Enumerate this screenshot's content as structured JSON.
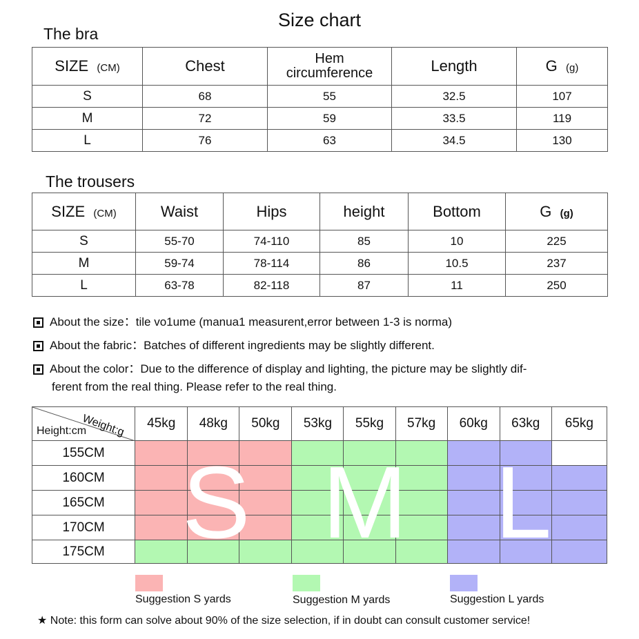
{
  "title": "Size chart",
  "bra": {
    "heading": "The bra",
    "headers": {
      "size": "SIZE",
      "size_unit": "(CM)",
      "chest": "Chest",
      "hem_1": "Hem",
      "hem_2": "circumference",
      "length": "Length",
      "g": "G",
      "g_unit": "(g)"
    },
    "rows": [
      [
        "S",
        "68",
        "55",
        "32.5",
        "107"
      ],
      [
        "M",
        "72",
        "59",
        "33.5",
        "119"
      ],
      [
        "L",
        "76",
        "63",
        "34.5",
        "130"
      ]
    ]
  },
  "trousers": {
    "heading": "The trousers",
    "headers": {
      "size": "SIZE",
      "size_unit": "(CM)",
      "waist": "Waist",
      "hips": "Hips",
      "height": "height",
      "bottom": "Bottom",
      "g": "G",
      "g_unit": "(g)"
    },
    "rows": [
      [
        "S",
        "55-70",
        "74-110",
        "85",
        "10",
        "225"
      ],
      [
        "M",
        "59-74",
        "78-114",
        "86",
        "10.5",
        "237"
      ],
      [
        "L",
        "63-78",
        "82-118",
        "87",
        "11",
        "250"
      ]
    ]
  },
  "notes": {
    "size": "About the size：tile vo1ume (manua1 measurent,error between 1-3 is norma)",
    "fabric": "About the fabric：Batches of different ingredients may be slightly different.",
    "color_1": "About the color：Due to the difference of display and lighting, the picture may be slightly dif-",
    "color_2": "ferent from the real thing. Please refer to the real thing."
  },
  "matrix": {
    "weight_label": "Weight:g",
    "height_label": "Height:cm",
    "weights": [
      "45kg",
      "48kg",
      "50kg",
      "53kg",
      "55kg",
      "57kg",
      "60kg",
      "63kg",
      "65kg"
    ],
    "heights": [
      "155CM",
      "160CM",
      "165CM",
      "170CM",
      "175CM"
    ],
    "grid": [
      [
        "S",
        "S",
        "S",
        "M",
        "M",
        "M",
        "L",
        "L",
        "-"
      ],
      [
        "S",
        "S",
        "S",
        "M",
        "M",
        "M",
        "L",
        "L",
        "L"
      ],
      [
        "S",
        "S",
        "S",
        "M",
        "M",
        "M",
        "L",
        "L",
        "L"
      ],
      [
        "S",
        "S",
        "S",
        "M",
        "M",
        "M",
        "L",
        "L",
        "L"
      ],
      [
        "M",
        "M",
        "M",
        "M",
        "M",
        "M",
        "L",
        "L",
        "L"
      ]
    ],
    "big_letters": {
      "s": "S",
      "m": "M",
      "l": "L"
    },
    "colors": {
      "S": "#fbb4b4",
      "M": "#b3f8b2",
      "L": "#b2b2f8"
    }
  },
  "legend": {
    "s": "Suggestion S yards",
    "m": "Suggestion M yards",
    "l": "Suggestion L yards"
  },
  "footnote": "★ Note: this form can solve about 90% of the size selection, if in doubt can consult customer service!"
}
